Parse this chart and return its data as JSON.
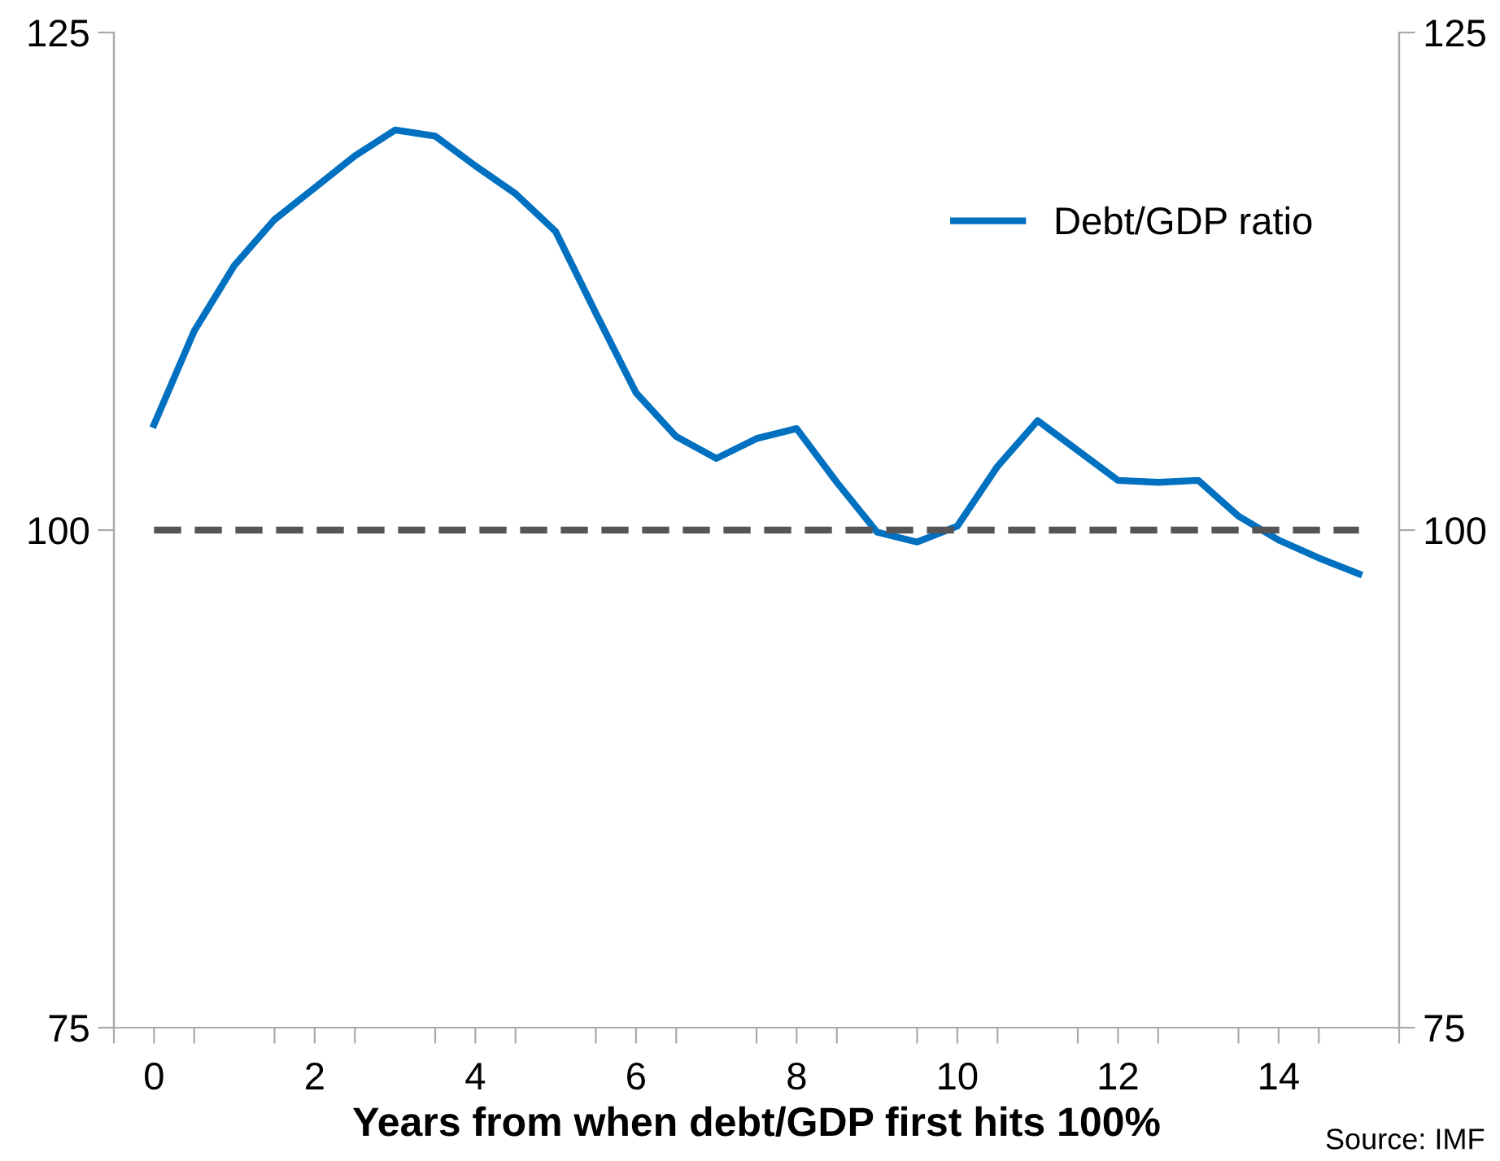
{
  "chart_data": {
    "type": "line",
    "xlabel": "Years from when debt/GDP first hits 100%",
    "x": [
      0,
      0.5,
      1,
      1.5,
      2,
      2.5,
      3,
      3.5,
      4,
      4.5,
      5,
      5.5,
      6,
      6.5,
      7,
      7.5,
      8,
      8.5,
      9,
      9.5,
      10,
      10.5,
      11,
      11.5,
      12,
      12.5,
      13,
      13.5,
      14,
      14.5,
      15
    ],
    "series": [
      {
        "name": "Debt/GDP ratio",
        "color": "#0070c0",
        "values": [
          105.3,
          110.0,
          113.3,
          115.6,
          117.2,
          118.8,
          120.1,
          119.8,
          118.3,
          116.9,
          115.0,
          110.9,
          106.9,
          104.7,
          103.6,
          104.6,
          105.1,
          102.4,
          99.9,
          99.4,
          100.2,
          103.2,
          105.5,
          104.0,
          102.5,
          102.4,
          102.5,
          100.7,
          99.5,
          98.6,
          97.8
        ]
      }
    ],
    "xlim": [
      -0.5,
      15.5
    ],
    "xticks": [
      {
        "value": -0.5,
        "label": null
      },
      0,
      {
        "value": 0.5,
        "label": null
      },
      {
        "value": 1.5,
        "label": null
      },
      2,
      {
        "value": 2.5,
        "label": null
      },
      {
        "value": 3.5,
        "label": null
      },
      4,
      {
        "value": 4.5,
        "label": null
      },
      {
        "value": 5.5,
        "label": null
      },
      6,
      {
        "value": 6.5,
        "label": null
      },
      {
        "value": 7.5,
        "label": null
      },
      8,
      {
        "value": 8.5,
        "label": null
      },
      {
        "value": 9.5,
        "label": null
      },
      10,
      {
        "value": 10.5,
        "label": null
      },
      {
        "value": 11.5,
        "label": null
      },
      12,
      {
        "value": 12.5,
        "label": null
      },
      {
        "value": 13.5,
        "label": null
      },
      14,
      {
        "value": 14.5,
        "label": null
      },
      {
        "value": 15.5,
        "label": null
      }
    ],
    "ylim": [
      75,
      125
    ],
    "yticks": [
      75,
      100,
      125
    ],
    "y2lim": [
      75,
      125
    ],
    "y2ticks": [
      75,
      100,
      125
    ],
    "ref_lines": [
      {
        "axis": "y",
        "value": 100,
        "color": "#555555",
        "line_style": "dashed"
      }
    ],
    "annotations": [
      "Source: IMF"
    ],
    "legend": "top right",
    "grid": false,
    "marker": "none",
    "line_style": "solid"
  }
}
